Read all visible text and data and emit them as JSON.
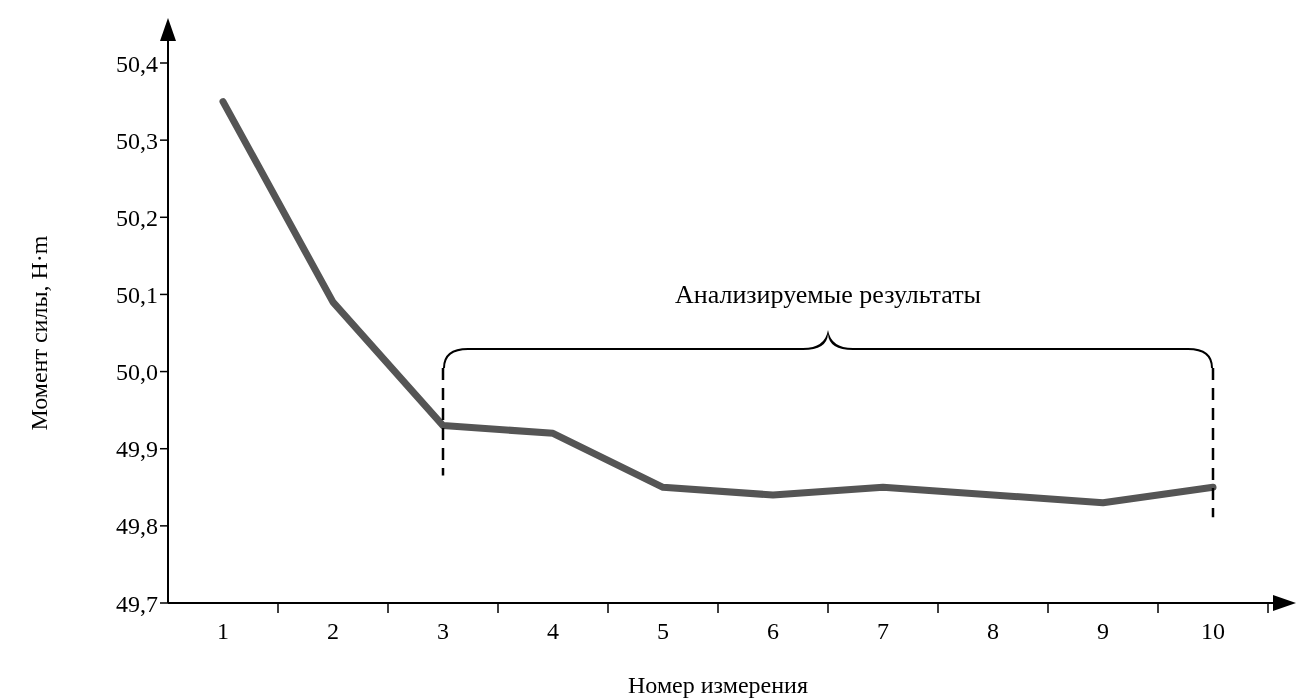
{
  "chart_data": {
    "type": "line",
    "xlabel": "Номер измерения",
    "ylabel": "Момент силы, Н·m",
    "categories": [
      "1",
      "2",
      "3",
      "4",
      "5",
      "6",
      "7",
      "8",
      "9",
      "10"
    ],
    "series": [
      {
        "color": "#555555",
        "values": [
          50.35,
          50.09,
          49.93,
          49.92,
          49.85,
          49.84,
          49.85,
          49.84,
          49.83,
          49.85
        ]
      }
    ],
    "ylim": [
      49.7,
      50.4
    ],
    "yticks": [
      {
        "value": 49.7,
        "label": "49,7"
      },
      {
        "value": 49.8,
        "label": "49,8"
      },
      {
        "value": 49.9,
        "label": "49,9"
      },
      {
        "value": 50.0,
        "label": "50,0"
      },
      {
        "value": 50.1,
        "label": "50,1"
      },
      {
        "value": 50.2,
        "label": "50,2"
      },
      {
        "value": 50.3,
        "label": "50,3"
      },
      {
        "value": 50.4,
        "label": "50,4"
      }
    ],
    "ref_lines": [
      {
        "axis": "x",
        "value": "3",
        "color": "#000000",
        "line_style": "dashed"
      },
      {
        "axis": "x",
        "value": "10",
        "color": "#000000",
        "line_style": "dashed"
      }
    ],
    "annotations": [
      "Анализируемые результаты"
    ],
    "grid": false,
    "legend": false,
    "marker": "none",
    "line_style": "solid"
  }
}
